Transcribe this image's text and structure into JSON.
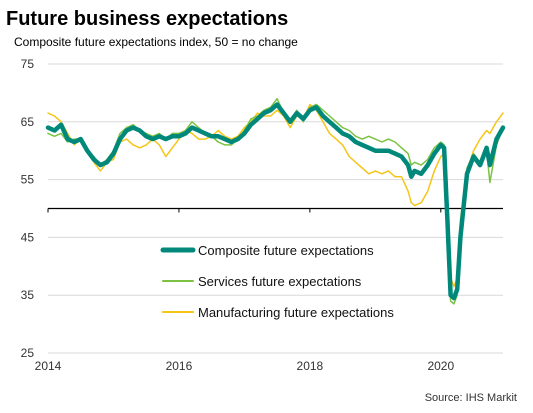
{
  "chart_data": {
    "type": "line",
    "title": "Future business expectations",
    "subtitle": "Composite future expectations index, 50 = no change",
    "source": "Source: IHS Markit",
    "ylim": [
      25,
      75
    ],
    "yticks": [
      75,
      65,
      55,
      45,
      35,
      25
    ],
    "reference_line": 50,
    "xlim": [
      2014.0,
      2020.95
    ],
    "xticks": [
      {
        "value": 2014,
        "label": "2014"
      },
      {
        "value": 2016,
        "label": "2016"
      },
      {
        "value": 2018,
        "label": "2018"
      },
      {
        "value": 2020,
        "label": "2020"
      }
    ],
    "grid": true,
    "legend_position": "center",
    "series": [
      {
        "name": "Composite future expectations",
        "color": "#00897b",
        "width": 4.5,
        "points": [
          [
            2014.0,
            64
          ],
          [
            2014.1,
            63.5
          ],
          [
            2014.2,
            64.5
          ],
          [
            2014.3,
            62
          ],
          [
            2014.4,
            61.5
          ],
          [
            2014.5,
            62
          ],
          [
            2014.6,
            60
          ],
          [
            2014.7,
            58.5
          ],
          [
            2014.8,
            57.5
          ],
          [
            2014.9,
            58
          ],
          [
            2015.0,
            59.5
          ],
          [
            2015.1,
            62
          ],
          [
            2015.2,
            63.5
          ],
          [
            2015.3,
            64
          ],
          [
            2015.4,
            63.5
          ],
          [
            2015.5,
            62.5
          ],
          [
            2015.6,
            62
          ],
          [
            2015.7,
            62.5
          ],
          [
            2015.8,
            62
          ],
          [
            2015.9,
            62.5
          ],
          [
            2016.0,
            62.5
          ],
          [
            2016.1,
            63
          ],
          [
            2016.2,
            64
          ],
          [
            2016.3,
            63.5
          ],
          [
            2016.4,
            63
          ],
          [
            2016.5,
            62.5
          ],
          [
            2016.6,
            62.5
          ],
          [
            2016.7,
            62
          ],
          [
            2016.8,
            61.5
          ],
          [
            2016.9,
            62
          ],
          [
            2017.0,
            63
          ],
          [
            2017.1,
            64.5
          ],
          [
            2017.2,
            65.5
          ],
          [
            2017.3,
            66.5
          ],
          [
            2017.4,
            67
          ],
          [
            2017.5,
            68
          ],
          [
            2017.6,
            66.5
          ],
          [
            2017.7,
            65
          ],
          [
            2017.8,
            66.5
          ],
          [
            2017.9,
            65.5
          ],
          [
            2018.0,
            67
          ],
          [
            2018.1,
            67.5
          ],
          [
            2018.2,
            66
          ],
          [
            2018.3,
            65
          ],
          [
            2018.4,
            64
          ],
          [
            2018.5,
            63
          ],
          [
            2018.6,
            62.5
          ],
          [
            2018.7,
            61.5
          ],
          [
            2018.8,
            61
          ],
          [
            2018.9,
            60.5
          ],
          [
            2019.0,
            60
          ],
          [
            2019.1,
            60
          ],
          [
            2019.2,
            60
          ],
          [
            2019.3,
            59.5
          ],
          [
            2019.4,
            59
          ],
          [
            2019.5,
            57.5
          ],
          [
            2019.55,
            55.5
          ],
          [
            2019.6,
            56.5
          ],
          [
            2019.7,
            56
          ],
          [
            2019.8,
            57.5
          ],
          [
            2019.9,
            59.5
          ],
          [
            2020.0,
            61
          ],
          [
            2020.05,
            60.5
          ],
          [
            2020.1,
            48
          ],
          [
            2020.15,
            35
          ],
          [
            2020.2,
            34.5
          ],
          [
            2020.25,
            36
          ],
          [
            2020.3,
            45
          ],
          [
            2020.4,
            56
          ],
          [
            2020.5,
            59
          ],
          [
            2020.6,
            57.5
          ],
          [
            2020.7,
            60.5
          ],
          [
            2020.75,
            57.5
          ],
          [
            2020.85,
            62
          ],
          [
            2020.95,
            64
          ]
        ]
      },
      {
        "name": "Services future expectations",
        "color": "#7cc242",
        "width": 1.5,
        "points": [
          [
            2014.0,
            63
          ],
          [
            2014.1,
            62.5
          ],
          [
            2014.2,
            63
          ],
          [
            2014.3,
            61.5
          ],
          [
            2014.4,
            62
          ],
          [
            2014.5,
            62
          ],
          [
            2014.6,
            60
          ],
          [
            2014.7,
            59
          ],
          [
            2014.8,
            57.5
          ],
          [
            2014.9,
            58.5
          ],
          [
            2015.0,
            60
          ],
          [
            2015.1,
            63
          ],
          [
            2015.2,
            64
          ],
          [
            2015.3,
            64.5
          ],
          [
            2015.4,
            63.5
          ],
          [
            2015.5,
            63
          ],
          [
            2015.6,
            62.5
          ],
          [
            2015.7,
            63
          ],
          [
            2015.8,
            62
          ],
          [
            2015.9,
            63
          ],
          [
            2016.0,
            63
          ],
          [
            2016.1,
            63.5
          ],
          [
            2016.2,
            65
          ],
          [
            2016.3,
            64
          ],
          [
            2016.4,
            63
          ],
          [
            2016.5,
            62.5
          ],
          [
            2016.6,
            61.5
          ],
          [
            2016.7,
            61
          ],
          [
            2016.8,
            61
          ],
          [
            2016.9,
            62
          ],
          [
            2017.0,
            63.5
          ],
          [
            2017.1,
            65.5
          ],
          [
            2017.2,
            66
          ],
          [
            2017.3,
            67
          ],
          [
            2017.4,
            67.5
          ],
          [
            2017.5,
            69
          ],
          [
            2017.6,
            66.5
          ],
          [
            2017.7,
            65
          ],
          [
            2017.8,
            67
          ],
          [
            2017.9,
            65
          ],
          [
            2018.0,
            67.5
          ],
          [
            2018.1,
            68
          ],
          [
            2018.2,
            67
          ],
          [
            2018.3,
            66
          ],
          [
            2018.4,
            65
          ],
          [
            2018.5,
            64
          ],
          [
            2018.6,
            63.5
          ],
          [
            2018.7,
            62.5
          ],
          [
            2018.8,
            62
          ],
          [
            2018.9,
            62.5
          ],
          [
            2019.0,
            62
          ],
          [
            2019.1,
            61.5
          ],
          [
            2019.2,
            62
          ],
          [
            2019.3,
            61.5
          ],
          [
            2019.4,
            60.5
          ],
          [
            2019.5,
            59.5
          ],
          [
            2019.55,
            57.5
          ],
          [
            2019.6,
            58
          ],
          [
            2019.7,
            57.5
          ],
          [
            2019.8,
            58.5
          ],
          [
            2019.9,
            60.5
          ],
          [
            2020.0,
            61.5
          ],
          [
            2020.05,
            61
          ],
          [
            2020.1,
            47
          ],
          [
            2020.15,
            34
          ],
          [
            2020.2,
            33.5
          ],
          [
            2020.25,
            35
          ],
          [
            2020.3,
            44
          ],
          [
            2020.4,
            57
          ],
          [
            2020.5,
            59.5
          ],
          [
            2020.6,
            58
          ],
          [
            2020.7,
            60
          ],
          [
            2020.75,
            54.5
          ],
          [
            2020.85,
            61
          ],
          [
            2020.95,
            64
          ]
        ]
      },
      {
        "name": "Manufacturing future expectations",
        "color": "#f5c518",
        "width": 1.5,
        "points": [
          [
            2014.0,
            66.5
          ],
          [
            2014.1,
            66
          ],
          [
            2014.2,
            65
          ],
          [
            2014.3,
            63
          ],
          [
            2014.4,
            61
          ],
          [
            2014.5,
            62
          ],
          [
            2014.6,
            60
          ],
          [
            2014.7,
            58
          ],
          [
            2014.8,
            56.5
          ],
          [
            2014.9,
            58
          ],
          [
            2015.0,
            58.5
          ],
          [
            2015.1,
            61.5
          ],
          [
            2015.2,
            62
          ],
          [
            2015.3,
            61
          ],
          [
            2015.4,
            60.5
          ],
          [
            2015.5,
            61
          ],
          [
            2015.6,
            62
          ],
          [
            2015.7,
            61
          ],
          [
            2015.8,
            59
          ],
          [
            2015.9,
            60.5
          ],
          [
            2016.0,
            62
          ],
          [
            2016.1,
            63.5
          ],
          [
            2016.2,
            63
          ],
          [
            2016.3,
            62
          ],
          [
            2016.4,
            62
          ],
          [
            2016.5,
            62.5
          ],
          [
            2016.6,
            63.5
          ],
          [
            2016.7,
            62.5
          ],
          [
            2016.8,
            62
          ],
          [
            2016.9,
            62.5
          ],
          [
            2017.0,
            64
          ],
          [
            2017.1,
            65
          ],
          [
            2017.2,
            66.5
          ],
          [
            2017.3,
            66
          ],
          [
            2017.4,
            66
          ],
          [
            2017.5,
            67
          ],
          [
            2017.6,
            66
          ],
          [
            2017.7,
            64
          ],
          [
            2017.8,
            66
          ],
          [
            2017.9,
            65.5
          ],
          [
            2018.0,
            68
          ],
          [
            2018.1,
            67
          ],
          [
            2018.2,
            65
          ],
          [
            2018.3,
            63
          ],
          [
            2018.4,
            62
          ],
          [
            2018.5,
            61
          ],
          [
            2018.6,
            59
          ],
          [
            2018.7,
            58
          ],
          [
            2018.8,
            57
          ],
          [
            2018.9,
            56
          ],
          [
            2019.0,
            56.5
          ],
          [
            2019.1,
            56
          ],
          [
            2019.2,
            56.5
          ],
          [
            2019.3,
            55.5
          ],
          [
            2019.4,
            55.5
          ],
          [
            2019.5,
            53
          ],
          [
            2019.55,
            51
          ],
          [
            2019.6,
            50.5
          ],
          [
            2019.7,
            51
          ],
          [
            2019.8,
            53
          ],
          [
            2019.9,
            56.5
          ],
          [
            2020.0,
            59
          ],
          [
            2020.05,
            59.5
          ],
          [
            2020.1,
            50
          ],
          [
            2020.15,
            38
          ],
          [
            2020.2,
            36.5
          ],
          [
            2020.25,
            38
          ],
          [
            2020.3,
            48
          ],
          [
            2020.4,
            56.5
          ],
          [
            2020.5,
            60
          ],
          [
            2020.6,
            62
          ],
          [
            2020.7,
            63.5
          ],
          [
            2020.75,
            63
          ],
          [
            2020.85,
            65
          ],
          [
            2020.95,
            66.5
          ]
        ]
      }
    ]
  }
}
